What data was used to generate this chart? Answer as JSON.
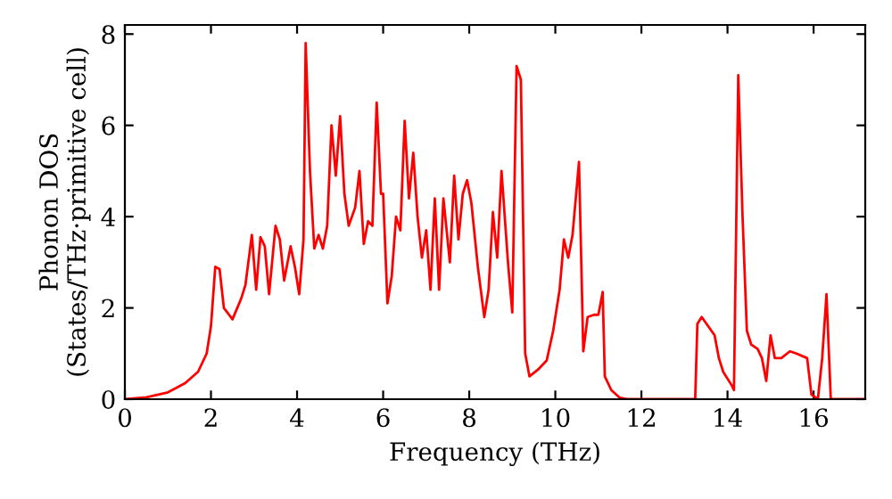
{
  "chart_data": {
    "type": "line",
    "xlabel": "Frequency (THz)",
    "ylabel": "Phonon DOS\n(States/THz·primitive cell)",
    "xlim": [
      0,
      17.2
    ],
    "ylim": [
      0,
      8.2
    ],
    "xticks": [
      0,
      2,
      4,
      6,
      8,
      10,
      12,
      14,
      16
    ],
    "yticks": [
      0,
      2,
      4,
      6,
      8
    ],
    "grid": false,
    "legend": false,
    "marker": "none",
    "line_style": "solid",
    "series": [
      {
        "color": "#ff0000",
        "x": [
          0,
          0.5,
          1,
          1.4,
          1.7,
          1.9,
          2.0,
          2.1,
          2.2,
          2.3,
          2.5,
          2.7,
          2.8,
          2.95,
          3.05,
          3.15,
          3.25,
          3.35,
          3.5,
          3.6,
          3.7,
          3.85,
          3.95,
          4.05,
          4.15,
          4.2,
          4.3,
          4.4,
          4.5,
          4.6,
          4.7,
          4.8,
          4.9,
          5.0,
          5.1,
          5.2,
          5.35,
          5.45,
          5.55,
          5.65,
          5.75,
          5.85,
          5.95,
          6.0,
          6.1,
          6.2,
          6.3,
          6.4,
          6.5,
          6.6,
          6.7,
          6.8,
          6.9,
          7.0,
          7.1,
          7.2,
          7.3,
          7.4,
          7.55,
          7.65,
          7.75,
          7.85,
          7.95,
          8.05,
          8.2,
          8.35,
          8.45,
          8.55,
          8.65,
          8.75,
          8.9,
          9.0,
          9.1,
          9.2,
          9.3,
          9.4,
          9.6,
          9.8,
          9.95,
          10.1,
          10.2,
          10.3,
          10.4,
          10.55,
          10.65,
          10.75,
          10.9,
          11.0,
          11.1,
          11.15,
          11.3,
          11.5,
          11.7,
          13.25,
          13.3,
          13.4,
          13.55,
          13.7,
          13.8,
          13.9,
          14.1,
          14.15,
          14.25,
          14.35,
          14.45,
          14.55,
          14.7,
          14.8,
          14.9,
          15.0,
          15.1,
          15.25,
          15.45,
          15.6,
          15.85,
          15.95,
          16.1,
          16.2,
          16.3,
          16.4,
          17.2
        ],
        "values": [
          0,
          0.04,
          0.15,
          0.35,
          0.6,
          1.0,
          1.6,
          2.9,
          2.85,
          2.0,
          1.75,
          2.2,
          2.5,
          3.6,
          2.4,
          3.55,
          3.35,
          2.3,
          3.8,
          3.5,
          2.6,
          3.35,
          2.9,
          2.3,
          3.5,
          7.8,
          5.0,
          3.3,
          3.6,
          3.3,
          3.8,
          6.0,
          4.9,
          6.2,
          4.5,
          3.8,
          4.2,
          5.0,
          3.4,
          3.9,
          3.8,
          6.5,
          4.5,
          4.5,
          2.1,
          2.7,
          4.0,
          3.7,
          6.1,
          4.4,
          5.4,
          4.0,
          3.1,
          3.7,
          2.4,
          4.4,
          2.4,
          4.4,
          3.0,
          4.9,
          3.5,
          4.5,
          4.8,
          4.3,
          2.9,
          1.8,
          2.4,
          4.1,
          3.1,
          5.0,
          3.0,
          1.9,
          7.3,
          7.0,
          1.0,
          0.5,
          0.65,
          0.85,
          1.5,
          2.4,
          3.5,
          3.1,
          3.6,
          5.2,
          1.05,
          1.8,
          1.85,
          1.85,
          2.35,
          0.5,
          0.2,
          0.03,
          0,
          0,
          1.65,
          1.8,
          1.6,
          1.4,
          0.9,
          0.6,
          0.3,
          0.2,
          7.1,
          4.0,
          1.5,
          1.2,
          1.1,
          0.9,
          0.4,
          1.4,
          0.9,
          0.9,
          1.05,
          1.0,
          0.9,
          0.1,
          0,
          0.9,
          2.3,
          0,
          0
        ]
      }
    ]
  }
}
